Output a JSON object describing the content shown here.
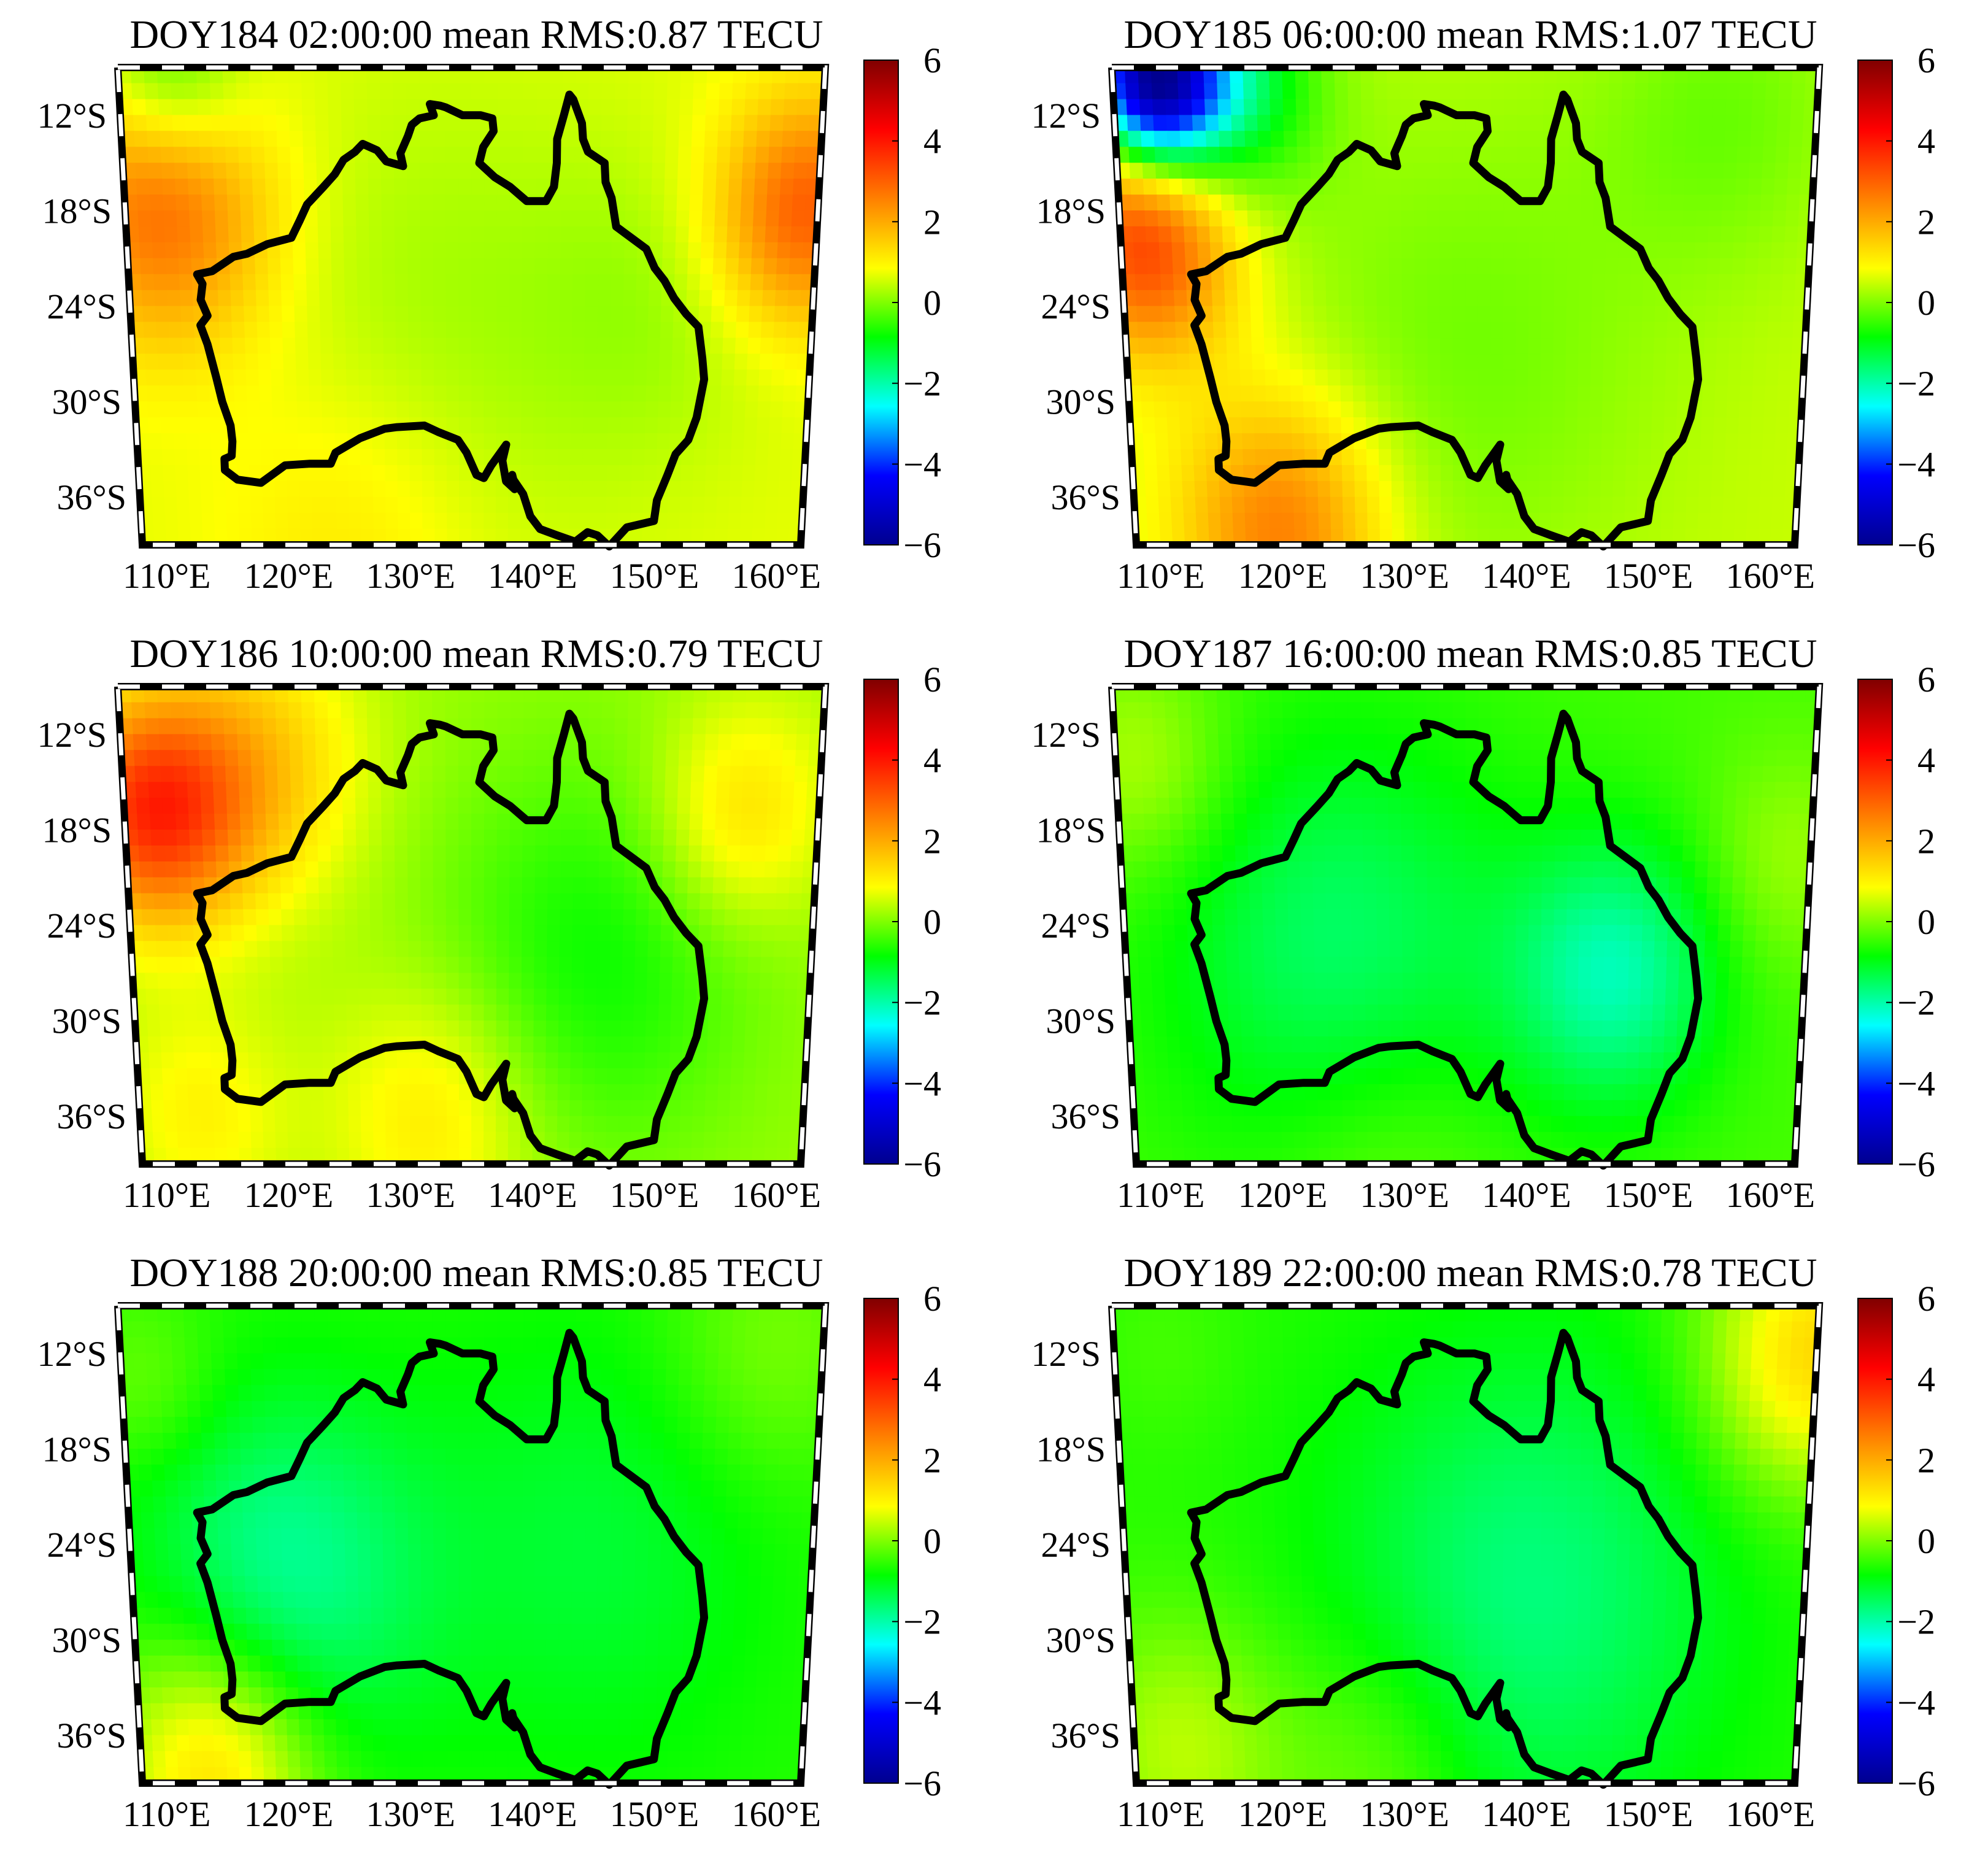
{
  "colormap": [
    "#00008f",
    "#0000ff",
    "#00ffff",
    "#00ff00",
    "#ffff00",
    "#ff8000",
    "#ff0000",
    "#800000"
  ],
  "colorbar": {
    "min": -6,
    "max": 6,
    "tick_labels": [
      "6",
      "4",
      "2",
      "0",
      "−2",
      "−4",
      "−6"
    ]
  },
  "axes": {
    "x_range_deg_e": [
      108,
      162
    ],
    "y_range_deg_s": [
      9,
      39
    ],
    "x_tick_labels": [
      "110°E",
      "120°E",
      "130°E",
      "140°E",
      "150°E",
      "160°E"
    ],
    "y_tick_labels": [
      "12°S",
      "18°S",
      "24°S",
      "30°S",
      "36°S"
    ]
  },
  "chart_data": [
    {
      "type": "heatmap",
      "title": "DOY184 02:00:00 mean RMS:0.87 TECU",
      "background": 0.7,
      "features": [
        {
          "lon": 111,
          "lat": 18,
          "value": 2.2,
          "spread": 6
        },
        {
          "lon": 161,
          "lat": 18,
          "value": 2.4,
          "spread": 5
        },
        {
          "lon": 112,
          "lat": 10,
          "value": -1.3,
          "spread": 4
        },
        {
          "lon": 132,
          "lat": 26,
          "value": -0.5,
          "spread": 12
        },
        {
          "lon": 150,
          "lat": 24,
          "value": -0.4,
          "spread": 7
        },
        {
          "lon": 125,
          "lat": 38,
          "value": 0.6,
          "spread": 8
        }
      ]
    },
    {
      "type": "heatmap",
      "title": "DOY185 06:00:00 mean RMS:1.07 TECU",
      "background": 0.5,
      "features": [
        {
          "lon": 111,
          "lat": 10,
          "value": -5.5,
          "spread": 3.5
        },
        {
          "lon": 116,
          "lat": 10,
          "value": -2.2,
          "spread": 5
        },
        {
          "lon": 110,
          "lat": 20,
          "value": 3.0,
          "spread": 5
        },
        {
          "lon": 120,
          "lat": 38,
          "value": 2.2,
          "spread": 6
        },
        {
          "lon": 135,
          "lat": 27,
          "value": -0.6,
          "spread": 12
        },
        {
          "lon": 155,
          "lat": 12,
          "value": -0.6,
          "spread": 7
        }
      ]
    },
    {
      "type": "heatmap",
      "title": "DOY186 10:00:00 mean RMS:0.79 TECU",
      "background": 0.2,
      "features": [
        {
          "lon": 110,
          "lat": 17,
          "value": 3.2,
          "spread": 5
        },
        {
          "lon": 118,
          "lat": 14,
          "value": 1.4,
          "spread": 6
        },
        {
          "lon": 156,
          "lat": 17,
          "value": 1.2,
          "spread": 5
        },
        {
          "lon": 132,
          "lat": 36,
          "value": 1.0,
          "spread": 6
        },
        {
          "lon": 113,
          "lat": 36,
          "value": 0.8,
          "spread": 5
        },
        {
          "lon": 145,
          "lat": 26,
          "value": -1.0,
          "spread": 9
        }
      ]
    },
    {
      "type": "heatmap",
      "title": "DOY187 16:00:00 mean RMS:0.85 TECU",
      "background": -0.4,
      "features": [
        {
          "lon": 147,
          "lat": 27,
          "value": -1.6,
          "spread": 6
        },
        {
          "lon": 125,
          "lat": 26,
          "value": -1.2,
          "spread": 10
        },
        {
          "lon": 110,
          "lat": 14,
          "value": 0.8,
          "spread": 5
        },
        {
          "lon": 160,
          "lat": 20,
          "value": 0.6,
          "spread": 5
        },
        {
          "lon": 128,
          "lat": 38,
          "value": 0.5,
          "spread": 7
        }
      ]
    },
    {
      "type": "heatmap",
      "title": "DOY188 20:00:00 mean RMS:0.85 TECU",
      "background": -0.6,
      "features": [
        {
          "lon": 120,
          "lat": 26,
          "value": -1.3,
          "spread": 8
        },
        {
          "lon": 145,
          "lat": 24,
          "value": -0.6,
          "spread": 10
        },
        {
          "lon": 114,
          "lat": 38,
          "value": 2.0,
          "spread": 6
        },
        {
          "lon": 158,
          "lat": 12,
          "value": 0.6,
          "spread": 6
        },
        {
          "lon": 110,
          "lat": 14,
          "value": 0.5,
          "spread": 4
        }
      ]
    },
    {
      "type": "heatmap",
      "title": "DOY189 22:00:00 mean RMS:0.78 TECU",
      "background": -0.6,
      "features": [
        {
          "lon": 162,
          "lat": 12,
          "value": 2.0,
          "spread": 6
        },
        {
          "lon": 112,
          "lat": 37,
          "value": 1.0,
          "spread": 6
        },
        {
          "lon": 128,
          "lat": 38,
          "value": 0.6,
          "spread": 6
        },
        {
          "lon": 140,
          "lat": 27,
          "value": -1.1,
          "spread": 11
        },
        {
          "lon": 112,
          "lat": 12,
          "value": 0.2,
          "spread": 4
        }
      ]
    }
  ],
  "coastline": [
    [
      113.4,
      -22.0
    ],
    [
      113.8,
      -22.6
    ],
    [
      113.6,
      -23.6
    ],
    [
      114.1,
      -24.6
    ],
    [
      113.5,
      -25.2
    ],
    [
      114.0,
      -26.4
    ],
    [
      114.6,
      -28.5
    ],
    [
      115.0,
      -30.0
    ],
    [
      115.6,
      -31.5
    ],
    [
      115.7,
      -32.5
    ],
    [
      115.6,
      -33.4
    ],
    [
      115.0,
      -33.6
    ],
    [
      115.0,
      -34.3
    ],
    [
      116.0,
      -34.9
    ],
    [
      117.9,
      -35.1
    ],
    [
      119.9,
      -34.0
    ],
    [
      121.9,
      -33.9
    ],
    [
      123.6,
      -33.9
    ],
    [
      124.0,
      -33.2
    ],
    [
      126.0,
      -32.3
    ],
    [
      128.0,
      -31.7
    ],
    [
      129.0,
      -31.6
    ],
    [
      131.2,
      -31.5
    ],
    [
      132.3,
      -31.9
    ],
    [
      133.9,
      -32.4
    ],
    [
      134.6,
      -33.2
    ],
    [
      135.4,
      -34.6
    ],
    [
      136.0,
      -34.8
    ],
    [
      136.6,
      -34.0
    ],
    [
      137.8,
      -32.7
    ],
    [
      137.5,
      -33.7
    ],
    [
      137.8,
      -35.0
    ],
    [
      138.5,
      -35.5
    ],
    [
      138.3,
      -34.6
    ],
    [
      138.4,
      -34.9
    ],
    [
      139.2,
      -35.8
    ],
    [
      139.8,
      -37.2
    ],
    [
      140.6,
      -38.0
    ],
    [
      142.0,
      -38.4
    ],
    [
      143.5,
      -38.8
    ],
    [
      144.5,
      -38.2
    ],
    [
      145.3,
      -38.4
    ],
    [
      146.3,
      -39.1
    ],
    [
      147.7,
      -37.9
    ],
    [
      149.9,
      -37.5
    ],
    [
      150.1,
      -36.2
    ],
    [
      150.9,
      -34.6
    ],
    [
      151.5,
      -33.3
    ],
    [
      152.5,
      -32.4
    ],
    [
      153.1,
      -31.0
    ],
    [
      153.6,
      -28.6
    ],
    [
      153.4,
      -27.3
    ],
    [
      153.0,
      -25.3
    ],
    [
      152.0,
      -24.5
    ],
    [
      151.0,
      -23.5
    ],
    [
      150.2,
      -22.4
    ],
    [
      149.4,
      -21.6
    ],
    [
      148.7,
      -20.4
    ],
    [
      146.3,
      -19.0
    ],
    [
      145.9,
      -17.2
    ],
    [
      145.4,
      -16.2
    ],
    [
      145.3,
      -15.0
    ],
    [
      144.0,
      -14.3
    ],
    [
      143.6,
      -13.5
    ],
    [
      143.5,
      -12.5
    ],
    [
      142.8,
      -11.0
    ],
    [
      142.5,
      -10.7
    ],
    [
      142.1,
      -12.0
    ],
    [
      141.6,
      -13.5
    ],
    [
      141.6,
      -15.0
    ],
    [
      141.4,
      -16.5
    ],
    [
      140.8,
      -17.4
    ],
    [
      139.3,
      -17.4
    ],
    [
      138.0,
      -16.5
    ],
    [
      136.8,
      -15.9
    ],
    [
      135.6,
      -15.0
    ],
    [
      135.9,
      -14.0
    ],
    [
      136.7,
      -13.0
    ],
    [
      136.6,
      -12.2
    ],
    [
      135.7,
      -12.0
    ],
    [
      134.3,
      -12.0
    ],
    [
      133.0,
      -11.5
    ],
    [
      132.6,
      -11.4
    ],
    [
      131.8,
      -11.3
    ],
    [
      132.1,
      -12.0
    ],
    [
      131.0,
      -12.2
    ],
    [
      130.4,
      -12.6
    ],
    [
      130.1,
      -13.3
    ],
    [
      129.5,
      -14.4
    ],
    [
      129.7,
      -15.2
    ],
    [
      128.4,
      -14.9
    ],
    [
      127.7,
      -14.2
    ],
    [
      126.6,
      -13.8
    ],
    [
      126.0,
      -14.3
    ],
    [
      125.1,
      -14.8
    ],
    [
      124.4,
      -15.7
    ],
    [
      123.5,
      -16.5
    ],
    [
      122.2,
      -17.6
    ],
    [
      121.6,
      -18.6
    ],
    [
      120.9,
      -19.7
    ],
    [
      119.0,
      -20.1
    ],
    [
      117.4,
      -20.7
    ],
    [
      116.3,
      -20.9
    ],
    [
      114.6,
      -21.8
    ],
    [
      113.4,
      -22.0
    ]
  ]
}
